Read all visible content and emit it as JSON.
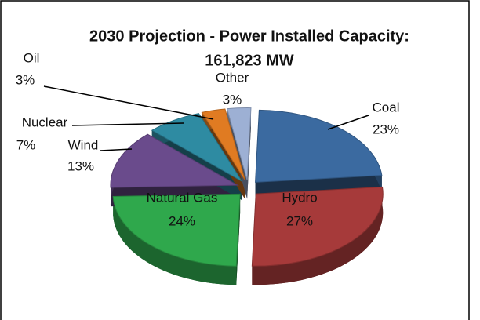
{
  "chart_data": {
    "type": "pie",
    "title": "2030 Projection - Power Installed Capacity:",
    "subtitle": "161,823 MW",
    "categories": [
      "Coal",
      "Hydro",
      "Natural Gas",
      "Wind",
      "Nuclear",
      "Oil",
      "Other"
    ],
    "values": [
      23,
      27,
      24,
      13,
      7,
      3,
      3
    ],
    "value_labels": [
      "23%",
      "27%",
      "24%",
      "13%",
      "7%",
      "3%",
      "3%"
    ],
    "colors": [
      "#3b6aa0",
      "#a63a3a",
      "#2fa84c",
      "#6a4b8c",
      "#2e8ba2",
      "#e07b22",
      "#9db0d4"
    ]
  }
}
